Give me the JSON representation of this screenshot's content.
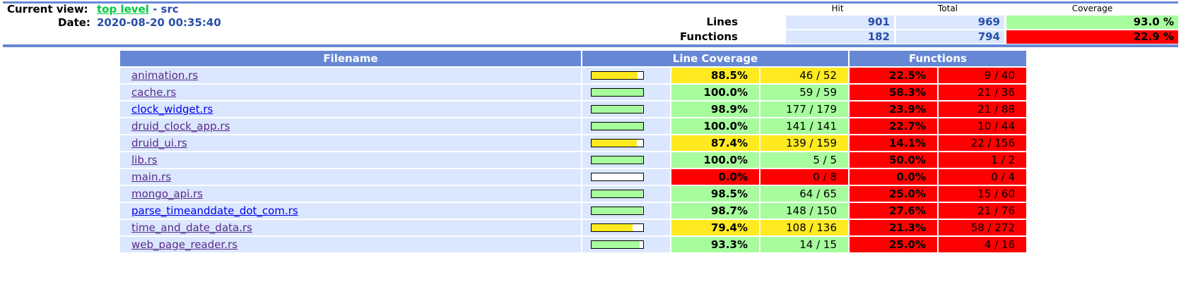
{
  "header": {
    "current_view_label": "Current view:",
    "top_level_link": "top level",
    "view_suffix": " - src",
    "date_label": "Date:",
    "date_value": "2020-08-20 00:35:40"
  },
  "summary": {
    "col_hit": "Hit",
    "col_total": "Total",
    "col_coverage": "Coverage",
    "lines": {
      "label": "Lines",
      "hit": "901",
      "total": "969",
      "coverage": "93.0 %"
    },
    "functions": {
      "label": "Functions",
      "hit": "182",
      "total": "794",
      "coverage": "22.9 %"
    }
  },
  "table": {
    "headers": {
      "filename": "Filename",
      "line_coverage": "Line Coverage",
      "functions": "Functions"
    },
    "rows": [
      {
        "file": "animation.rs",
        "line_frac": 0.885,
        "line_pct": "88.5%",
        "line_cnt": "46 / 52",
        "line_level": "med",
        "fn_pct": "22.5%",
        "fn_cnt": "9 / 40",
        "visited": true
      },
      {
        "file": "cache.rs",
        "line_frac": 1.0,
        "line_pct": "100.0%",
        "line_cnt": "59 / 59",
        "line_level": "hi",
        "fn_pct": "58.3%",
        "fn_cnt": "21 / 36",
        "visited": true
      },
      {
        "file": "clock_widget.rs",
        "line_frac": 0.989,
        "line_pct": "98.9%",
        "line_cnt": "177 / 179",
        "line_level": "hi",
        "fn_pct": "23.9%",
        "fn_cnt": "21 / 88",
        "visited": false
      },
      {
        "file": "druid_clock_app.rs",
        "line_frac": 1.0,
        "line_pct": "100.0%",
        "line_cnt": "141 / 141",
        "line_level": "hi",
        "fn_pct": "22.7%",
        "fn_cnt": "10 / 44",
        "visited": true
      },
      {
        "file": "druid_ui.rs",
        "line_frac": 0.874,
        "line_pct": "87.4%",
        "line_cnt": "139 / 159",
        "line_level": "med",
        "fn_pct": "14.1%",
        "fn_cnt": "22 / 156",
        "visited": true
      },
      {
        "file": "lib.rs",
        "line_frac": 1.0,
        "line_pct": "100.0%",
        "line_cnt": "5 / 5",
        "line_level": "hi",
        "fn_pct": "50.0%",
        "fn_cnt": "1 / 2",
        "visited": true
      },
      {
        "file": "main.rs",
        "line_frac": 0.0,
        "line_pct": "0.0%",
        "line_cnt": "0 / 8",
        "line_level": "lo",
        "fn_pct": "0.0%",
        "fn_cnt": "0 / 4",
        "visited": true
      },
      {
        "file": "mongo_api.rs",
        "line_frac": 0.985,
        "line_pct": "98.5%",
        "line_cnt": "64 / 65",
        "line_level": "hi",
        "fn_pct": "25.0%",
        "fn_cnt": "15 / 60",
        "visited": true
      },
      {
        "file": "parse_timeanddate_dot_com.rs",
        "line_frac": 0.987,
        "line_pct": "98.7%",
        "line_cnt": "148 / 150",
        "line_level": "hi",
        "fn_pct": "27.6%",
        "fn_cnt": "21 / 76",
        "visited": false
      },
      {
        "file": "time_and_date_data.rs",
        "line_frac": 0.794,
        "line_pct": "79.4%",
        "line_cnt": "108 / 136",
        "line_level": "med",
        "fn_pct": "21.3%",
        "fn_cnt": "58 / 272",
        "visited": true
      },
      {
        "file": "web_page_reader.rs",
        "line_frac": 0.933,
        "line_pct": "93.3%",
        "line_cnt": "14 / 15",
        "line_level": "hi",
        "fn_pct": "25.0%",
        "fn_cnt": "4 / 16",
        "visited": true
      }
    ]
  },
  "colors": {
    "hi": "#a7fc9d",
    "med": "#ffea20",
    "lo": "#ff0000",
    "header_bg": "#6688d4",
    "row_bg": "#dae7fe"
  }
}
